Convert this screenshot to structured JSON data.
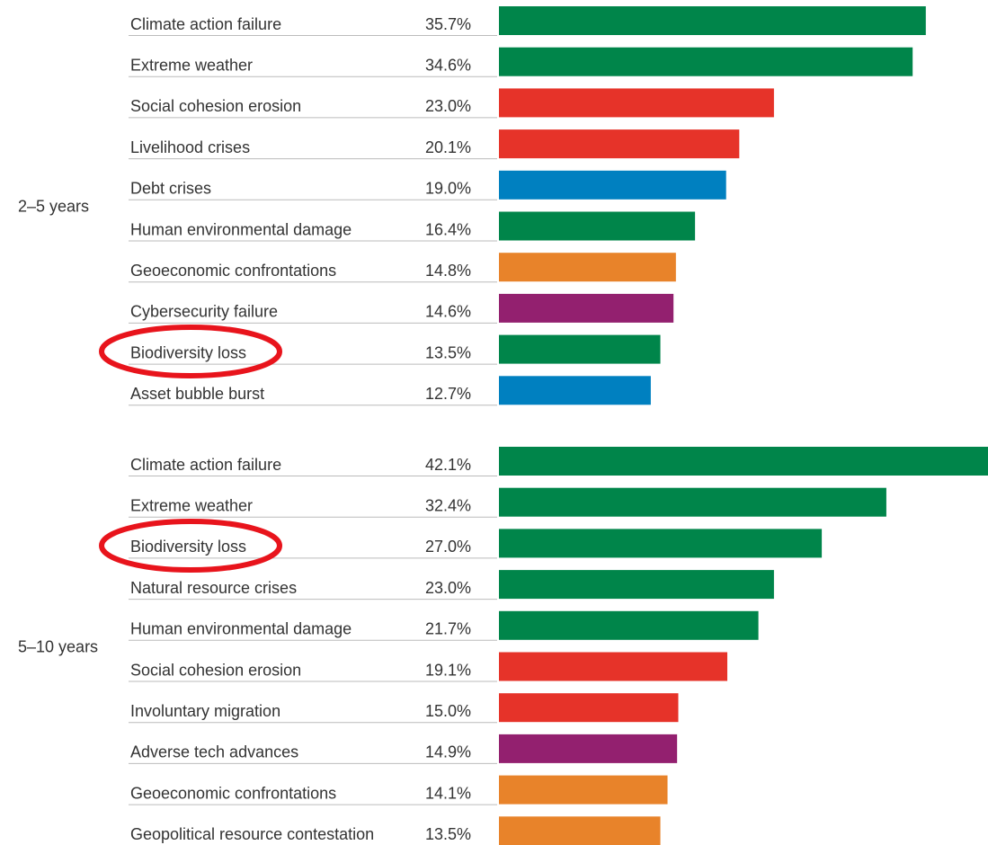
{
  "chart_data": [
    {
      "type": "bar",
      "group_label": "2–5 years",
      "categories": [
        "Climate action failure",
        "Extreme weather",
        "Social cohesion erosion",
        "Livelihood crises",
        "Debt crises",
        "Human environmental damage",
        "Geoeconomic confrontations",
        "Cybersecurity failure",
        "Biodiversity loss",
        "Asset bubble burst"
      ],
      "values": [
        35.7,
        34.6,
        23.0,
        20.1,
        19.0,
        16.4,
        14.8,
        14.6,
        13.5,
        12.7
      ],
      "value_labels": [
        "35.7%",
        "34.6%",
        "23.0%",
        "20.1%",
        "19.0%",
        "16.4%",
        "14.8%",
        "14.6%",
        "13.5%",
        "12.7%"
      ],
      "colors": [
        "#00854a",
        "#00854a",
        "#e63329",
        "#e63329",
        "#0080c0",
        "#00854a",
        "#e8832a",
        "#93206f",
        "#00854a",
        "#0080c0"
      ]
    },
    {
      "type": "bar",
      "group_label": "5–10 years",
      "categories": [
        "Climate action failure",
        "Extreme weather",
        "Biodiversity loss",
        "Natural resource crises",
        "Human environmental damage",
        "Social cohesion erosion",
        "Involuntary migration",
        "Adverse tech advances",
        "Geoeconomic confrontations",
        "Geopolitical resource contestation"
      ],
      "values": [
        42.1,
        32.4,
        27.0,
        23.0,
        21.7,
        19.1,
        15.0,
        14.9,
        14.1,
        13.5
      ],
      "value_labels": [
        "42.1%",
        "32.4%",
        "27.0%",
        "23.0%",
        "21.7%",
        "19.1%",
        "15.0%",
        "14.9%",
        "14.1%",
        "13.5%"
      ],
      "colors": [
        "#00854a",
        "#00854a",
        "#00854a",
        "#00854a",
        "#00854a",
        "#e63329",
        "#e63329",
        "#93206f",
        "#e8832a",
        "#e8832a"
      ]
    }
  ]
}
